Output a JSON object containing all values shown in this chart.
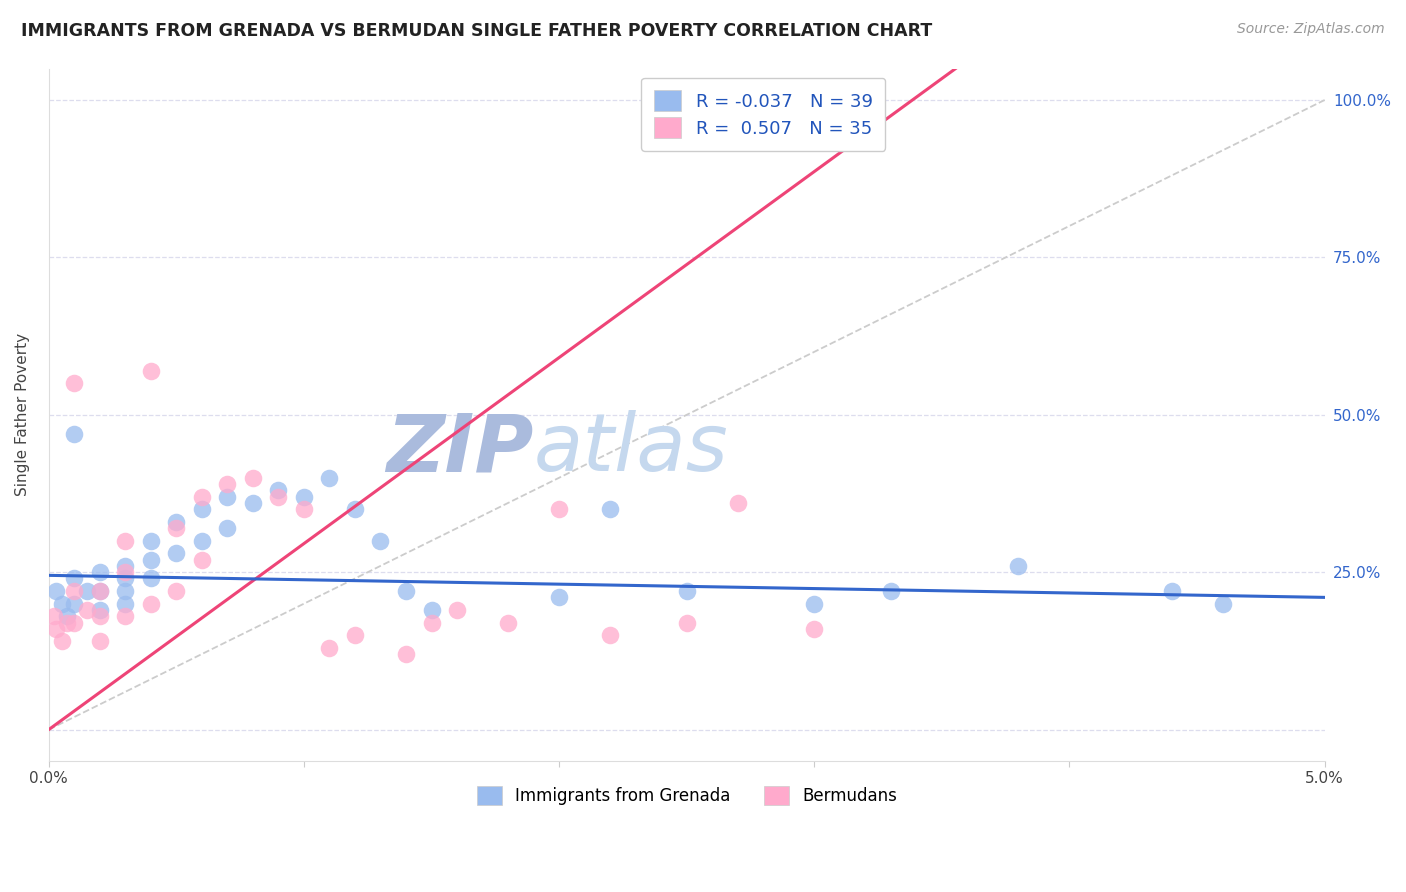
{
  "title": "IMMIGRANTS FROM GRENADA VS BERMUDAN SINGLE FATHER POVERTY CORRELATION CHART",
  "source": "Source: ZipAtlas.com",
  "ylabel": "Single Father Poverty",
  "xlim": [
    0.0,
    0.05
  ],
  "ylim": [
    -0.05,
    1.05
  ],
  "blue_color": "#99BBEE",
  "pink_color": "#FFAACC",
  "trend_blue": "#3366CC",
  "trend_pink": "#EE4477",
  "ref_line_color": "#CCCCCC",
  "watermark_color": "#D5E5F5",
  "blue_r": "-0.037",
  "blue_n": "39",
  "pink_r": "0.507",
  "pink_n": "35",
  "blue_scatter_x": [
    0.0003,
    0.0005,
    0.0007,
    0.001,
    0.001,
    0.001,
    0.0015,
    0.002,
    0.002,
    0.002,
    0.003,
    0.003,
    0.003,
    0.003,
    0.004,
    0.004,
    0.004,
    0.005,
    0.005,
    0.006,
    0.006,
    0.007,
    0.007,
    0.008,
    0.009,
    0.01,
    0.011,
    0.012,
    0.013,
    0.014,
    0.015,
    0.02,
    0.022,
    0.025,
    0.03,
    0.033,
    0.038,
    0.044,
    0.046
  ],
  "blue_scatter_y": [
    0.22,
    0.2,
    0.18,
    0.47,
    0.24,
    0.2,
    0.22,
    0.25,
    0.22,
    0.19,
    0.26,
    0.24,
    0.22,
    0.2,
    0.3,
    0.27,
    0.24,
    0.33,
    0.28,
    0.35,
    0.3,
    0.37,
    0.32,
    0.36,
    0.38,
    0.37,
    0.4,
    0.35,
    0.3,
    0.22,
    0.19,
    0.21,
    0.35,
    0.22,
    0.2,
    0.22,
    0.26,
    0.22,
    0.2
  ],
  "pink_scatter_x": [
    0.0002,
    0.0003,
    0.0005,
    0.0007,
    0.001,
    0.001,
    0.001,
    0.0015,
    0.002,
    0.002,
    0.002,
    0.003,
    0.003,
    0.003,
    0.004,
    0.004,
    0.005,
    0.005,
    0.006,
    0.006,
    0.007,
    0.008,
    0.009,
    0.01,
    0.011,
    0.012,
    0.014,
    0.015,
    0.016,
    0.018,
    0.02,
    0.022,
    0.025,
    0.027,
    0.03
  ],
  "pink_scatter_y": [
    0.18,
    0.16,
    0.14,
    0.17,
    0.55,
    0.22,
    0.17,
    0.19,
    0.22,
    0.18,
    0.14,
    0.3,
    0.25,
    0.18,
    0.57,
    0.2,
    0.32,
    0.22,
    0.37,
    0.27,
    0.39,
    0.4,
    0.37,
    0.35,
    0.13,
    0.15,
    0.12,
    0.17,
    0.19,
    0.17,
    0.35,
    0.15,
    0.17,
    0.36,
    0.16
  ],
  "pink_line_x0": 0.0,
  "pink_line_y0": 0.0,
  "pink_line_x1": 0.022,
  "pink_line_y1": 0.65,
  "blue_line_x0": 0.0,
  "blue_line_y0": 0.245,
  "blue_line_x1": 0.05,
  "blue_line_y1": 0.21
}
